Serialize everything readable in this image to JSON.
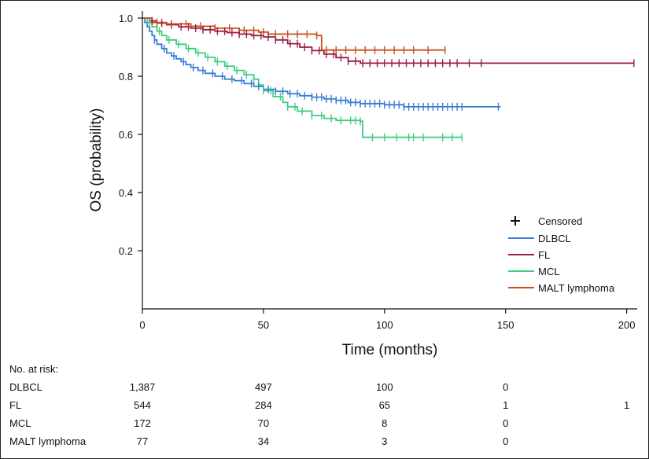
{
  "chart_data": {
    "type": "line",
    "subtype": "kaplan-meier",
    "xlabel": "Time (months)",
    "ylabel": "OS (probability)",
    "xlim": [
      0,
      205
    ],
    "ylim": [
      0,
      1.02
    ],
    "xticks": [
      0,
      50,
      100,
      150,
      200
    ],
    "xtick_labels": [
      "0",
      "50",
      "100",
      "150",
      "200"
    ],
    "yticks": [
      0.2,
      0.4,
      0.6,
      0.8,
      1.0
    ],
    "ytick_labels": [
      "0.2",
      "0.4",
      "0.6",
      "0.8",
      "1.0"
    ],
    "legend_position": "right",
    "censored_label": "Censored",
    "series": [
      {
        "name": "DLBCL",
        "color": "#3a7fd5",
        "steps": [
          [
            0,
            1.0
          ],
          [
            1,
            0.985
          ],
          [
            2,
            0.97
          ],
          [
            3,
            0.955
          ],
          [
            4,
            0.94
          ],
          [
            5,
            0.925
          ],
          [
            6,
            0.91
          ],
          [
            8,
            0.895
          ],
          [
            10,
            0.88
          ],
          [
            12,
            0.87
          ],
          [
            14,
            0.86
          ],
          [
            16,
            0.85
          ],
          [
            18,
            0.84
          ],
          [
            20,
            0.83
          ],
          [
            23,
            0.82
          ],
          [
            26,
            0.81
          ],
          [
            30,
            0.8
          ],
          [
            34,
            0.79
          ],
          [
            38,
            0.785
          ],
          [
            42,
            0.775
          ],
          [
            46,
            0.765
          ],
          [
            50,
            0.755
          ],
          [
            55,
            0.748
          ],
          [
            60,
            0.74
          ],
          [
            65,
            0.733
          ],
          [
            70,
            0.728
          ],
          [
            75,
            0.722
          ],
          [
            80,
            0.717
          ],
          [
            85,
            0.71
          ],
          [
            90,
            0.706
          ],
          [
            100,
            0.702
          ],
          [
            108,
            0.695
          ],
          [
            148,
            0.695
          ]
        ],
        "censored": [
          5,
          9,
          13,
          17,
          21,
          25,
          29,
          33,
          37,
          41,
          45,
          48,
          52,
          55,
          58,
          61,
          64,
          67,
          70,
          72,
          74,
          76,
          78,
          80,
          82,
          84,
          86,
          88,
          90,
          92,
          94,
          96,
          98,
          100,
          102,
          104,
          106,
          108,
          110,
          112,
          114,
          116,
          118,
          120,
          122,
          124,
          126,
          128,
          130,
          132,
          147
        ]
      },
      {
        "name": "FL",
        "color": "#9b1b45",
        "steps": [
          [
            0,
            1.0
          ],
          [
            3,
            0.99
          ],
          [
            6,
            0.983
          ],
          [
            10,
            0.977
          ],
          [
            15,
            0.97
          ],
          [
            20,
            0.965
          ],
          [
            25,
            0.96
          ],
          [
            30,
            0.955
          ],
          [
            35,
            0.95
          ],
          [
            40,
            0.945
          ],
          [
            45,
            0.94
          ],
          [
            50,
            0.935
          ],
          [
            55,
            0.925
          ],
          [
            60,
            0.912
          ],
          [
            65,
            0.9
          ],
          [
            70,
            0.888
          ],
          [
            75,
            0.876
          ],
          [
            80,
            0.864
          ],
          [
            85,
            0.852
          ],
          [
            90,
            0.845
          ],
          [
            203,
            0.845
          ]
        ],
        "censored": [
          4,
          8,
          12,
          16,
          19,
          22,
          25,
          28,
          31,
          34,
          37,
          40,
          43,
          46,
          49,
          52,
          55,
          58,
          61,
          64,
          67,
          70,
          73,
          76,
          79,
          82,
          85,
          88,
          91,
          94,
          97,
          100,
          103,
          106,
          109,
          112,
          115,
          118,
          121,
          124,
          127,
          130,
          135,
          140,
          203
        ]
      },
      {
        "name": "MCL",
        "color": "#3fcc82",
        "steps": [
          [
            0,
            1.0
          ],
          [
            2,
            0.985
          ],
          [
            4,
            0.97
          ],
          [
            6,
            0.955
          ],
          [
            8,
            0.94
          ],
          [
            10,
            0.925
          ],
          [
            14,
            0.91
          ],
          [
            18,
            0.895
          ],
          [
            22,
            0.88
          ],
          [
            26,
            0.865
          ],
          [
            30,
            0.85
          ],
          [
            34,
            0.835
          ],
          [
            38,
            0.82
          ],
          [
            42,
            0.805
          ],
          [
            46,
            0.79
          ],
          [
            48,
            0.77
          ],
          [
            50,
            0.75
          ],
          [
            54,
            0.73
          ],
          [
            58,
            0.71
          ],
          [
            60,
            0.695
          ],
          [
            64,
            0.68
          ],
          [
            70,
            0.665
          ],
          [
            75,
            0.655
          ],
          [
            80,
            0.648
          ],
          [
            90,
            0.645
          ],
          [
            91,
            0.59
          ],
          [
            132,
            0.59
          ]
        ],
        "censored": [
          3,
          7,
          11,
          15,
          19,
          23,
          27,
          31,
          35,
          39,
          43,
          46,
          50,
          53,
          57,
          60,
          63,
          66,
          70,
          74,
          78,
          82,
          86,
          88,
          90,
          95,
          100,
          105,
          110,
          112,
          116,
          124,
          128,
          132
        ]
      },
      {
        "name": "MALT lymphoma",
        "color": "#c8501b",
        "steps": [
          [
            0,
            1.0
          ],
          [
            4,
            0.985
          ],
          [
            10,
            0.98
          ],
          [
            20,
            0.972
          ],
          [
            30,
            0.965
          ],
          [
            40,
            0.958
          ],
          [
            48,
            0.952
          ],
          [
            52,
            0.945
          ],
          [
            72,
            0.94
          ],
          [
            74,
            0.89
          ],
          [
            125,
            0.89
          ]
        ],
        "censored": [
          6,
          12,
          18,
          24,
          30,
          36,
          42,
          46,
          50,
          55,
          60,
          64,
          68,
          72,
          76,
          80,
          84,
          88,
          92,
          96,
          100,
          104,
          108,
          112,
          118,
          125
        ]
      }
    ],
    "risk_table": {
      "title": "No. at risk:",
      "times": [
        0,
        50,
        100,
        150,
        200
      ],
      "rows": [
        {
          "label": "DLBCL",
          "values": [
            "1,387",
            "497",
            "100",
            "0",
            ""
          ]
        },
        {
          "label": "FL",
          "values": [
            "544",
            "284",
            "65",
            "1",
            "1"
          ]
        },
        {
          "label": "MCL",
          "values": [
            "172",
            "70",
            "8",
            "0",
            ""
          ]
        },
        {
          "label": "MALT lymphoma",
          "values": [
            "77",
            "34",
            "3",
            "0",
            ""
          ]
        }
      ]
    }
  }
}
